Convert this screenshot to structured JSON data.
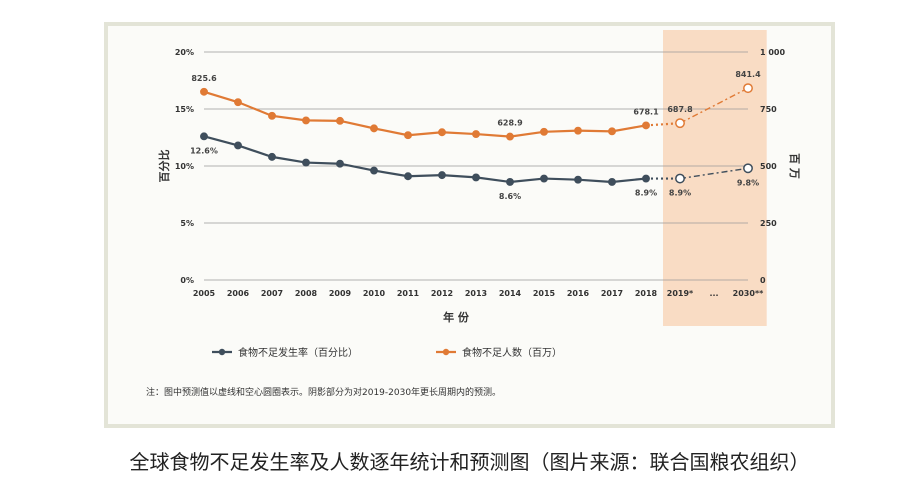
{
  "chart_data": {
    "type": "line",
    "x": [
      "2005",
      "2006",
      "2007",
      "2008",
      "2009",
      "2010",
      "2011",
      "2012",
      "2013",
      "2014",
      "2015",
      "2016",
      "2017",
      "2018",
      "2019*",
      "...",
      "2030**"
    ],
    "xlabel": "年 份",
    "ylabel_left": "百分比",
    "ylabel_right": "百 万",
    "ylim_left": [
      0,
      20
    ],
    "ylim_right": [
      0,
      1000
    ],
    "left_ticks": [
      "0%",
      "5%",
      "10%",
      "15%",
      "20%"
    ],
    "right_ticks": [
      "0",
      "250",
      "500",
      "750",
      "1 000"
    ],
    "grid": true,
    "series": [
      {
        "name": "食物不足发生率（百分比）",
        "axis": "left",
        "color": "#3f4e5c",
        "values": [
          12.6,
          11.8,
          10.8,
          10.3,
          10.2,
          9.6,
          9.1,
          9.2,
          9.0,
          8.6,
          8.9,
          8.8,
          8.6,
          8.9,
          8.9,
          null,
          9.8
        ]
      },
      {
        "name": "食物不足人数（百万）",
        "axis": "right",
        "color": "#e07a35",
        "values": [
          825.6,
          780,
          720,
          700,
          698,
          665,
          635,
          648,
          640,
          628.9,
          650,
          655,
          652,
          678.1,
          687.8,
          null,
          841.4
        ]
      }
    ],
    "projection_start_index": 13,
    "shaded_from_index": 14,
    "data_labels": [
      {
        "series": 0,
        "index": 0,
        "text": "12.6%"
      },
      {
        "series": 0,
        "index": 9,
        "text": "8.6%"
      },
      {
        "series": 0,
        "index": 13,
        "text": "8.9%"
      },
      {
        "series": 0,
        "index": 14,
        "text": "8.9%"
      },
      {
        "series": 0,
        "index": 16,
        "text": "9.8%"
      },
      {
        "series": 1,
        "index": 0,
        "text": "825.6"
      },
      {
        "series": 1,
        "index": 9,
        "text": "628.9"
      },
      {
        "series": 1,
        "index": 13,
        "text": "678.1"
      },
      {
        "series": 1,
        "index": 14,
        "text": "687.8"
      },
      {
        "series": 1,
        "index": 16,
        "text": "841.4"
      }
    ],
    "note": "注：图中预测值以虚线和空心圆圈表示。阴影部分为对2019-2030年更长周期内的预测。",
    "shade_color": "#f9dcc4"
  },
  "caption": "全球食物不足发生率及人数逐年统计和预测图（图片来源：联合国粮农组织）"
}
